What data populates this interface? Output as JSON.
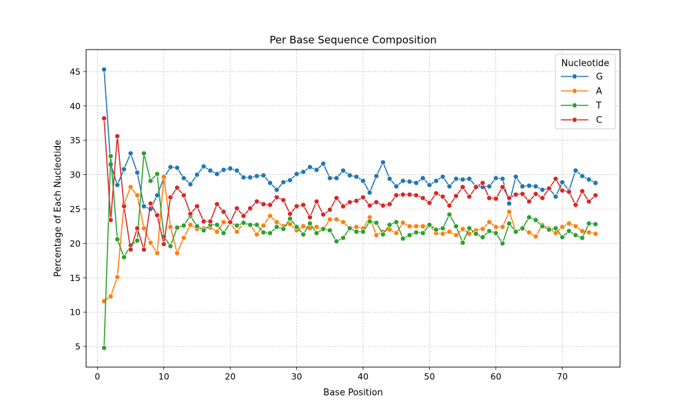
{
  "chart_data": {
    "type": "line",
    "title": "Per Base Sequence Composition",
    "xlabel": "Base Position",
    "ylabel": "Percentage of Each Nucleotide",
    "xlim": [
      -1.7,
      78.7
    ],
    "ylim": [
      2.0,
      48.2
    ],
    "x_ticks": [
      0,
      10,
      20,
      30,
      40,
      50,
      60,
      70
    ],
    "y_ticks": [
      5,
      10,
      15,
      20,
      25,
      30,
      35,
      40,
      45
    ],
    "grid": true,
    "legend": {
      "title": "Nucleotide",
      "placement": "top-right"
    },
    "x": [
      1,
      2,
      3,
      4,
      5,
      6,
      7,
      8,
      9,
      10,
      11,
      12,
      13,
      14,
      15,
      16,
      17,
      18,
      19,
      20,
      21,
      22,
      23,
      24,
      25,
      26,
      27,
      28,
      29,
      30,
      31,
      32,
      33,
      34,
      35,
      36,
      37,
      38,
      39,
      40,
      41,
      42,
      43,
      44,
      45,
      46,
      47,
      48,
      49,
      50,
      51,
      52,
      53,
      54,
      55,
      56,
      57,
      58,
      59,
      60,
      61,
      62,
      63,
      64,
      65,
      66,
      67,
      68,
      69,
      70,
      71,
      72,
      73,
      74,
      75
    ],
    "series": [
      {
        "name": "G",
        "color": "#1f77b4",
        "values": [
          45.3,
          31.5,
          28.5,
          30.8,
          33.1,
          30.3,
          25.4,
          25.0,
          27.0,
          29.5,
          31.1,
          31.0,
          29.5,
          28.6,
          30.0,
          31.2,
          30.6,
          30.1,
          30.7,
          30.9,
          30.6,
          29.6,
          29.6,
          29.8,
          29.9,
          28.8,
          27.8,
          28.9,
          29.2,
          30.1,
          30.4,
          31.1,
          30.7,
          31.6,
          29.5,
          29.5,
          30.6,
          29.9,
          29.7,
          29.1,
          27.4,
          29.8,
          31.8,
          29.4,
          28.3,
          29.1,
          29.0,
          28.8,
          29.5,
          28.5,
          29.1,
          29.7,
          28.3,
          29.4,
          29.3,
          29.4,
          28.3,
          28.2,
          28.3,
          29.5,
          29.4,
          25.8,
          29.7,
          28.3,
          28.4,
          28.3,
          27.8,
          28.0,
          26.8,
          28.9,
          27.7,
          30.6,
          29.8,
          29.3,
          28.8
        ]
      },
      {
        "name": "A",
        "color": "#ff7f0e",
        "values": [
          11.6,
          12.3,
          15.1,
          25.7,
          28.2,
          27.0,
          22.2,
          20.1,
          18.6,
          29.7,
          22.4,
          18.6,
          20.8,
          22.7,
          22.1,
          22.2,
          22.3,
          21.7,
          23.1,
          22.9,
          21.7,
          22.9,
          22.7,
          21.3,
          22.6,
          24.0,
          23.1,
          22.5,
          22.8,
          21.9,
          22.5,
          22.2,
          22.4,
          22.0,
          23.5,
          23.5,
          23.1,
          22.2,
          22.4,
          22.2,
          23.8,
          21.2,
          21.7,
          22.0,
          21.5,
          23.0,
          22.5,
          22.5,
          22.5,
          22.6,
          21.5,
          21.4,
          21.7,
          21.2,
          22.1,
          21.4,
          21.9,
          22.1,
          23.1,
          22.4,
          22.4,
          24.6,
          21.8,
          22.1,
          21.6,
          21.0,
          22.7,
          22.2,
          21.5,
          22.4,
          22.9,
          22.5,
          21.8,
          21.6,
          21.4
        ]
      },
      {
        "name": "T",
        "color": "#2ca02c",
        "values": [
          4.8,
          32.7,
          20.6,
          18.0,
          19.7,
          20.4,
          33.1,
          29.1,
          30.1,
          21.0,
          19.6,
          22.3,
          22.6,
          24.0,
          22.5,
          21.9,
          22.7,
          22.7,
          21.5,
          23.0,
          22.6,
          23.0,
          22.7,
          22.7,
          21.6,
          21.5,
          22.4,
          22.1,
          23.6,
          22.4,
          21.3,
          22.9,
          21.5,
          22.1,
          21.9,
          20.3,
          20.8,
          22.2,
          21.7,
          21.7,
          23.2,
          23.0,
          21.3,
          22.7,
          23.1,
          20.7,
          21.2,
          21.6,
          21.5,
          22.7,
          22.0,
          22.2,
          24.2,
          22.5,
          20.1,
          22.2,
          21.4,
          20.9,
          21.8,
          21.5,
          20.0,
          22.9,
          21.7,
          22.2,
          23.8,
          23.4,
          22.5,
          22.0,
          22.2,
          20.9,
          21.8,
          21.2,
          20.8,
          22.9,
          22.8
        ]
      },
      {
        "name": "C",
        "color": "#d62728",
        "values": [
          38.2,
          23.4,
          35.6,
          25.4,
          19.1,
          22.2,
          19.1,
          25.8,
          24.1,
          19.9,
          26.7,
          28.1,
          27.0,
          24.3,
          25.4,
          23.2,
          23.2,
          25.7,
          24.6,
          23.1,
          25.1,
          24.0,
          25.1,
          26.1,
          25.7,
          25.6,
          26.7,
          26.3,
          24.3,
          25.4,
          25.6,
          23.8,
          26.1,
          24.2,
          24.9,
          26.6,
          25.4,
          26.0,
          26.2,
          26.7,
          25.5,
          26.0,
          25.5,
          25.7,
          27.0,
          27.1,
          27.1,
          27.0,
          26.6,
          25.9,
          27.3,
          26.8,
          25.5,
          26.9,
          28.2,
          26.8,
          28.2,
          28.8,
          26.6,
          26.5,
          28.2,
          26.6,
          27.1,
          27.2,
          26.1,
          27.2,
          26.6,
          28.0,
          29.4,
          27.7,
          27.5,
          25.6,
          27.6,
          26.1,
          27.0
        ]
      }
    ]
  }
}
